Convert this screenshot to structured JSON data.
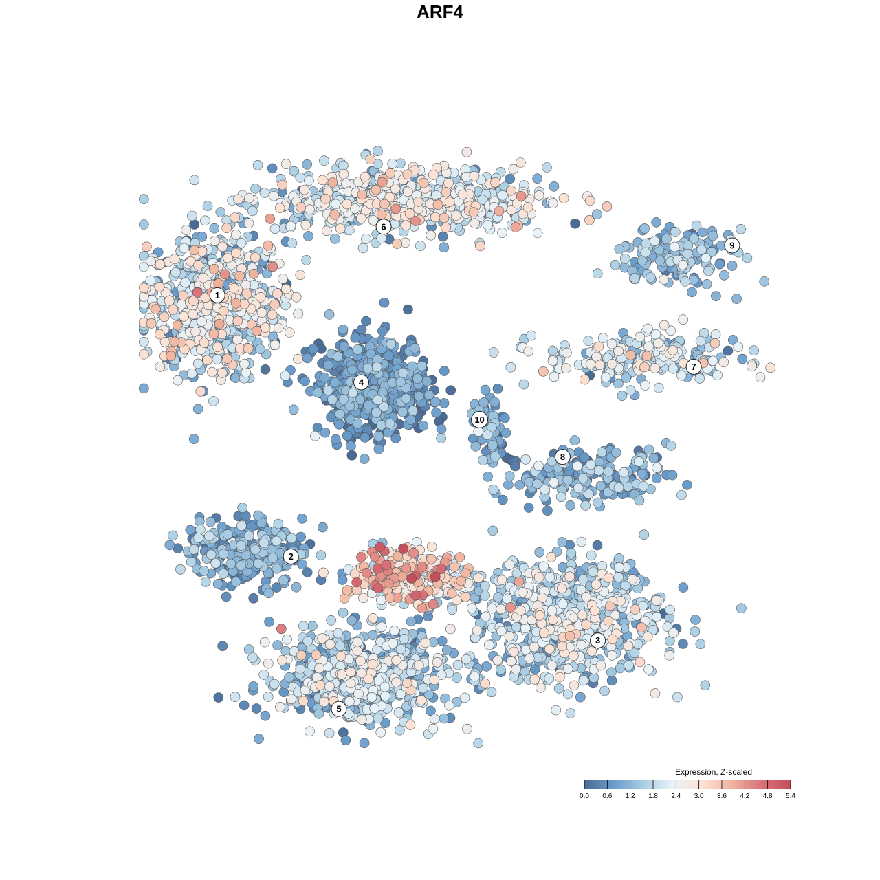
{
  "chart_data": {
    "type": "scatter",
    "title": "ARF4",
    "xlabel": "",
    "ylabel": "",
    "grid": false,
    "axes_visible": false,
    "x_range": [
      0,
      100
    ],
    "y_range": [
      0,
      100
    ],
    "color_scale": {
      "title": "Expression, Z-scaled",
      "min": 0.0,
      "max": 5.4,
      "ticks": [
        "0.0",
        "0.6",
        "1.2",
        "1.8",
        "2.4",
        "3.0",
        "3.6",
        "4.2",
        "4.8",
        "5.4"
      ],
      "colors": [
        "#4a6b94",
        "#6a9ccb",
        "#a9cde3",
        "#e8f2f8",
        "#fbe3d6",
        "#f0b49e",
        "#d9737a",
        "#c54e5c"
      ],
      "placement": "bottom-right"
    },
    "clusters": [
      {
        "id": "1",
        "x": 12,
        "y": 72,
        "sx": 10,
        "sy": 10,
        "n": 700,
        "expr": 1.8,
        "spread": 0.9,
        "angle": 0
      },
      {
        "id": "6",
        "x": 42,
        "y": 88,
        "sx": 20,
        "sy": 5,
        "n": 600,
        "expr": 2.0,
        "spread": 0.8,
        "angle": 0
      },
      {
        "id": "4",
        "x": 37,
        "y": 58,
        "sx": 8,
        "sy": 7,
        "n": 550,
        "expr": 0.6,
        "spread": 0.5,
        "angle": 0
      },
      {
        "id": "10",
        "x": 55,
        "y": 52,
        "sx": 3,
        "sy": 4,
        "n": 60,
        "expr": 1.0,
        "spread": 0.4,
        "angle": 0
      },
      {
        "id": "9",
        "x": 84,
        "y": 79,
        "sx": 8,
        "sy": 4,
        "n": 150,
        "expr": 1.2,
        "spread": 0.5,
        "angle": 0
      },
      {
        "id": "7",
        "x": 79,
        "y": 63,
        "sx": 14,
        "sy": 4,
        "n": 230,
        "expr": 1.8,
        "spread": 0.7,
        "angle": 0
      },
      {
        "id": "8",
        "x": 70,
        "y": 44,
        "sx": 12,
        "sy": 4,
        "n": 200,
        "expr": 1.0,
        "spread": 0.6,
        "angle": 0
      },
      {
        "id": "2",
        "x": 17,
        "y": 32,
        "sx": 9,
        "sy": 5,
        "n": 250,
        "expr": 0.9,
        "spread": 0.5,
        "angle": 0
      },
      {
        "id": "3",
        "x": 67,
        "y": 21,
        "sx": 14,
        "sy": 9,
        "n": 700,
        "expr": 1.7,
        "spread": 0.7,
        "angle": 0
      },
      {
        "id": "5",
        "x": 35,
        "y": 12,
        "sx": 13,
        "sy": 7,
        "n": 650,
        "expr": 1.5,
        "spread": 0.7,
        "angle": 0
      },
      {
        "id": "hot",
        "x": 42,
        "y": 28,
        "sx": 8,
        "sy": 4,
        "n": 260,
        "expr": 3.0,
        "spread": 1.0,
        "angle": 0
      }
    ],
    "label_points": [
      {
        "id": "1",
        "x": 12.5,
        "y": 73.0
      },
      {
        "id": "6",
        "x": 38.5,
        "y": 84.0
      },
      {
        "id": "9",
        "x": 93.0,
        "y": 81.0
      },
      {
        "id": "7",
        "x": 87.0,
        "y": 61.5
      },
      {
        "id": "4",
        "x": 35.0,
        "y": 59.0
      },
      {
        "id": "10",
        "x": 53.5,
        "y": 53.0
      },
      {
        "id": "8",
        "x": 66.5,
        "y": 47.0
      },
      {
        "id": "2",
        "x": 24.0,
        "y": 31.0
      },
      {
        "id": "3",
        "x": 72.0,
        "y": 17.5
      },
      {
        "id": "5",
        "x": 31.5,
        "y": 6.5
      }
    ]
  }
}
